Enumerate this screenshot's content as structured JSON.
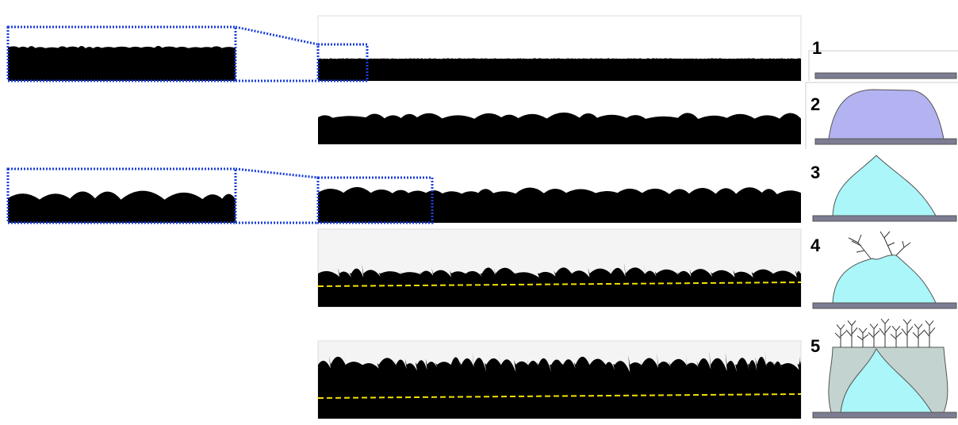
{
  "figure": {
    "stages": [
      {
        "label": "1"
      },
      {
        "label": "2"
      },
      {
        "label": "3"
      },
      {
        "label": "4"
      },
      {
        "label": "5"
      }
    ]
  }
}
